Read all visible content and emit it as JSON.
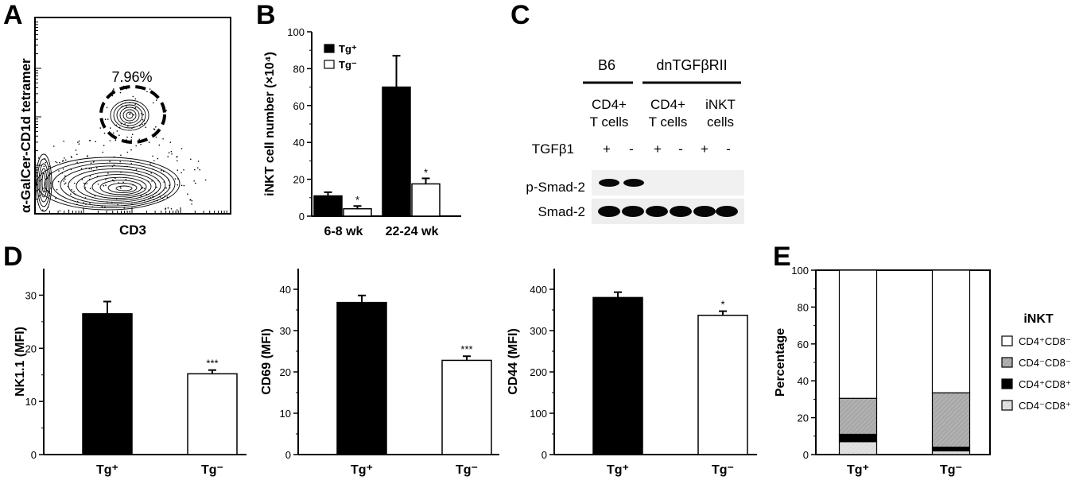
{
  "panels": {
    "A": "A",
    "B": "B",
    "C": "C",
    "D": "D",
    "E": "E"
  },
  "flow": {
    "ylabel": "α-GalCer-CD1d tetramer",
    "xlabel": "CD3",
    "gate_percent": "7.96%"
  },
  "blot": {
    "group_b6": "B6",
    "group_dn": "dnTGFβRII",
    "col1": [
      "CD4+",
      "T cells"
    ],
    "col2": [
      "CD4+",
      "T cells"
    ],
    "col3": [
      "iNKT",
      "cells"
    ],
    "treatment_label": "TGFβ1",
    "treatment_signs": [
      "+",
      "-",
      "+",
      "-",
      "+",
      "-"
    ],
    "row1": "p-Smad-2",
    "row2": "Smad-2"
  },
  "chart_data": [
    {
      "id": "B",
      "type": "bar",
      "ylabel": "iNKT cell number (×10⁴)",
      "categories": [
        "6-8 wk",
        "22-24 wk"
      ],
      "ylim": [
        0,
        100
      ],
      "yticks": [
        "0",
        "20",
        "40",
        "60",
        "80",
        "100"
      ],
      "legend": [
        "Tg⁺",
        "Tg⁻"
      ],
      "series": [
        {
          "name": "Tg⁺",
          "values": [
            11,
            70
          ],
          "errors": [
            2,
            17
          ],
          "color": "#000000"
        },
        {
          "name": "Tg⁻",
          "values": [
            4,
            17.5
          ],
          "errors": [
            1.5,
            3
          ],
          "color": "#ffffff"
        }
      ],
      "significance": [
        "*",
        "*"
      ]
    },
    {
      "id": "D1",
      "type": "bar",
      "ylabel": "NK1.1 (MFI)",
      "categories": [
        "Tg⁺",
        "Tg⁻"
      ],
      "ylim": [
        0,
        35
      ],
      "yticks": [
        "0",
        "10",
        "20",
        "30"
      ],
      "values": [
        26.5,
        15.2
      ],
      "errors": [
        2.3,
        0.7
      ],
      "colors": [
        "#000000",
        "#ffffff"
      ],
      "significance": [
        "",
        "***"
      ]
    },
    {
      "id": "D2",
      "type": "bar",
      "ylabel": "CD69 (MFI)",
      "categories": [
        "Tg⁺",
        "Tg⁻"
      ],
      "ylim": [
        0,
        45
      ],
      "yticks": [
        "0",
        "10",
        "20",
        "30",
        "40"
      ],
      "values": [
        36.8,
        22.8
      ],
      "errors": [
        1.7,
        1.0
      ],
      "colors": [
        "#000000",
        "#ffffff"
      ],
      "significance": [
        "",
        "***"
      ]
    },
    {
      "id": "D3",
      "type": "bar",
      "ylabel": "CD44 (MFI)",
      "categories": [
        "Tg⁺",
        "Tg⁻"
      ],
      "ylim": [
        0,
        450
      ],
      "yticks": [
        "0",
        "100",
        "200",
        "300",
        "400"
      ],
      "values": [
        380,
        337
      ],
      "errors": [
        13,
        10
      ],
      "colors": [
        "#000000",
        "#ffffff"
      ],
      "significance": [
        "",
        "*"
      ]
    },
    {
      "id": "E",
      "type": "bar",
      "stacked": true,
      "ylabel": "Percentage",
      "categories": [
        "Tg⁺",
        "Tg⁻"
      ],
      "ylim": [
        0,
        100
      ],
      "yticks": [
        "0",
        "20",
        "40",
        "60",
        "80",
        "100"
      ],
      "legend_title": "iNKT",
      "series": [
        {
          "name": "CD4⁻CD8⁺",
          "values": [
            7,
            2
          ],
          "color": "#d8d8d8"
        },
        {
          "name": "CD4⁺CD8⁺",
          "values": [
            4,
            2
          ],
          "color": "#000000"
        },
        {
          "name": "CD4⁻CD8⁻",
          "values": [
            19.5,
            29.5
          ],
          "color": "#a8a8a8"
        },
        {
          "name": "CD4⁺CD8⁻",
          "values": [
            69.5,
            66.5
          ],
          "color": "#ffffff"
        }
      ],
      "legend_order": [
        "CD4⁺CD8⁻",
        "CD4⁻CD8⁻",
        "CD4⁺CD8⁺",
        "CD4⁻CD8⁺"
      ]
    }
  ]
}
